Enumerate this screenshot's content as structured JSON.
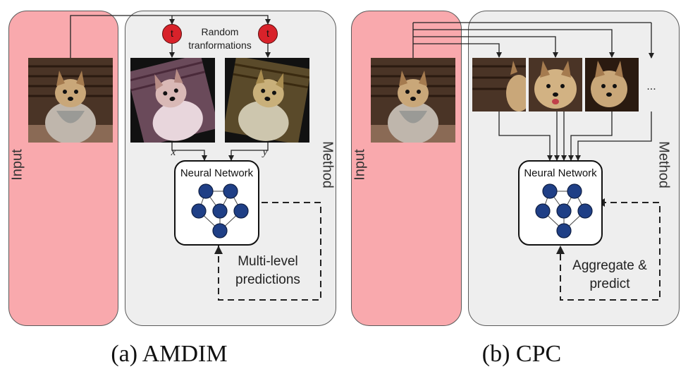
{
  "panel_a": {
    "input_label": "Input",
    "method_label": "Method",
    "transform_node_letter": "t",
    "transform_label_line1": "Random",
    "transform_label_line2": "tranformations",
    "var_x": "x",
    "var_y": "y",
    "network_title": "Neural Network",
    "feedback_line1": "Multi-level",
    "feedback_line2": "predictions",
    "caption": "(a) AMDIM"
  },
  "panel_b": {
    "input_label": "Input",
    "method_label": "Method",
    "ellipsis": "...",
    "network_title": "Neural Network",
    "feedback_line1": "Aggregate &",
    "feedback_line2": "predict",
    "caption": "(b) CPC"
  },
  "colors": {
    "input_panel": "#f9a9ad",
    "method_panel": "#eeeeee",
    "transform_node": "#d8222a",
    "neuron": "#1f3f86"
  }
}
